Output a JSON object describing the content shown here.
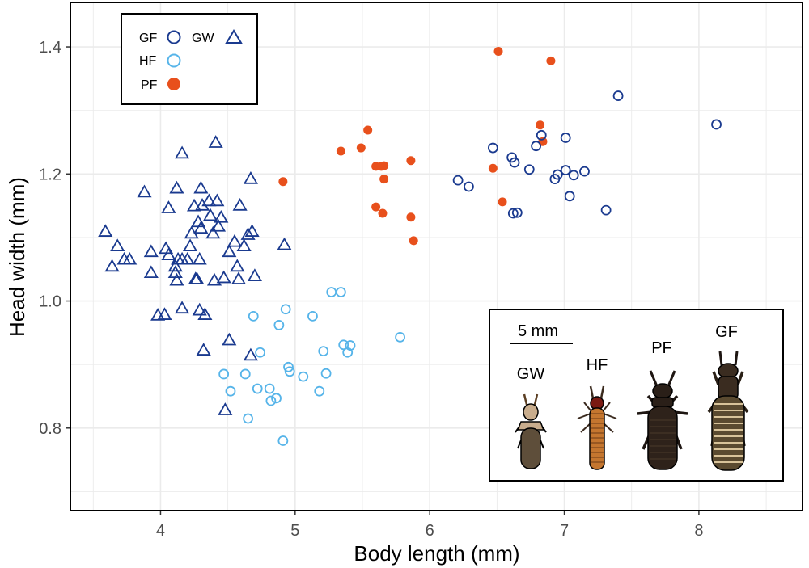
{
  "chart_data": {
    "type": "scatter",
    "title": "",
    "xlabel": "Body length (mm)",
    "ylabel": "Head width (mm)",
    "xlim": [
      3.33,
      8.77
    ],
    "ylim": [
      0.67,
      1.47
    ],
    "xticks": [
      4,
      5,
      6,
      7,
      8
    ],
    "xtick_labels": [
      "4",
      "5",
      "6",
      "7",
      "8"
    ],
    "yticks": [
      0.8,
      1.0,
      1.2,
      1.4
    ],
    "ytick_labels": [
      "0.8",
      "1.0",
      "1.2",
      "1.4"
    ],
    "grid": true,
    "legend_position": "top-left",
    "legend": [
      {
        "name": "GF",
        "shape": "open-circle",
        "color": "#1a3a8f"
      },
      {
        "name": "GW",
        "shape": "open-triangle",
        "color": "#1a3a8f"
      },
      {
        "name": "HF",
        "shape": "open-circle",
        "color": "#56b4e9"
      },
      {
        "name": "PF",
        "shape": "filled-circle",
        "color": "#e8501c"
      }
    ],
    "series": [
      {
        "name": "GW",
        "shape": "open-triangle",
        "color": "#1a3a8f",
        "points": [
          [
            3.59,
            1.11
          ],
          [
            3.64,
            1.055
          ],
          [
            3.68,
            1.087
          ],
          [
            3.73,
            1.066
          ],
          [
            3.77,
            1.066
          ],
          [
            3.88,
            1.172
          ],
          [
            3.93,
            1.078
          ],
          [
            3.93,
            1.045
          ],
          [
            3.98,
            0.978
          ],
          [
            4.03,
            0.979
          ],
          [
            4.04,
            1.083
          ],
          [
            4.06,
            1.073
          ],
          [
            4.06,
            1.147
          ],
          [
            4.11,
            1.055
          ],
          [
            4.11,
            1.045
          ],
          [
            4.12,
            1.178
          ],
          [
            4.12,
            1.033
          ],
          [
            4.13,
            1.066
          ],
          [
            4.16,
            1.066
          ],
          [
            4.16,
            0.989
          ],
          [
            4.16,
            1.233
          ],
          [
            4.2,
            1.066
          ],
          [
            4.22,
            1.087
          ],
          [
            4.23,
            1.107
          ],
          [
            4.25,
            1.15
          ],
          [
            4.26,
            1.035
          ],
          [
            4.27,
            1.035
          ],
          [
            4.28,
            1.125
          ],
          [
            4.29,
            1.066
          ],
          [
            4.29,
            0.986
          ],
          [
            4.3,
            1.178
          ],
          [
            4.3,
            1.115
          ],
          [
            4.31,
            1.151
          ],
          [
            4.32,
            0.923
          ],
          [
            4.33,
            0.979
          ],
          [
            4.36,
            1.158
          ],
          [
            4.37,
            1.135
          ],
          [
            4.39,
            1.107
          ],
          [
            4.4,
            1.033
          ],
          [
            4.41,
            1.25
          ],
          [
            4.42,
            1.158
          ],
          [
            4.43,
            1.118
          ],
          [
            4.45,
            1.132
          ],
          [
            4.47,
            1.037
          ],
          [
            4.48,
            0.829
          ],
          [
            4.51,
            0.939
          ],
          [
            4.51,
            1.078
          ],
          [
            4.55,
            1.094
          ],
          [
            4.57,
            1.055
          ],
          [
            4.58,
            1.035
          ],
          [
            4.59,
            1.151
          ],
          [
            4.62,
            1.087
          ],
          [
            4.65,
            1.105
          ],
          [
            4.67,
            0.915
          ],
          [
            4.67,
            1.193
          ],
          [
            4.68,
            1.11
          ],
          [
            4.7,
            1.04
          ],
          [
            4.92,
            1.089
          ]
        ]
      },
      {
        "name": "HF",
        "shape": "open-circle",
        "color": "#56b4e9",
        "points": [
          [
            4.47,
            0.885
          ],
          [
            4.52,
            0.858
          ],
          [
            4.63,
            0.885
          ],
          [
            4.65,
            0.815
          ],
          [
            4.69,
            0.976
          ],
          [
            4.72,
            0.862
          ],
          [
            4.74,
            0.919
          ],
          [
            4.81,
            0.862
          ],
          [
            4.82,
            0.843
          ],
          [
            4.86,
            0.847
          ],
          [
            4.88,
            0.962
          ],
          [
            4.91,
            0.78
          ],
          [
            4.93,
            0.987
          ],
          [
            4.95,
            0.896
          ],
          [
            4.96,
            0.889
          ],
          [
            5.06,
            0.881
          ],
          [
            5.13,
            0.976
          ],
          [
            5.18,
            0.858
          ],
          [
            5.21,
            0.921
          ],
          [
            5.23,
            0.886
          ],
          [
            5.27,
            1.014
          ],
          [
            5.34,
            1.014
          ],
          [
            5.36,
            0.931
          ],
          [
            5.39,
            0.919
          ],
          [
            5.41,
            0.93
          ],
          [
            5.78,
            0.943
          ]
        ]
      },
      {
        "name": "PF",
        "shape": "filled-circle",
        "color": "#e8501c",
        "points": [
          [
            4.91,
            1.188
          ],
          [
            5.34,
            1.236
          ],
          [
            5.49,
            1.241
          ],
          [
            5.54,
            1.269
          ],
          [
            5.6,
            1.212
          ],
          [
            5.6,
            1.148
          ],
          [
            5.64,
            1.212
          ],
          [
            5.65,
            1.138
          ],
          [
            5.66,
            1.213
          ],
          [
            5.66,
            1.192
          ],
          [
            5.86,
            1.221
          ],
          [
            5.86,
            1.132
          ],
          [
            5.88,
            1.095
          ],
          [
            6.47,
            1.209
          ],
          [
            6.51,
            1.393
          ],
          [
            6.54,
            1.156
          ],
          [
            6.82,
            1.277
          ],
          [
            6.84,
            1.251
          ],
          [
            6.9,
            1.378
          ]
        ]
      },
      {
        "name": "GF",
        "shape": "open-circle",
        "color": "#1a3a8f",
        "points": [
          [
            6.21,
            1.19
          ],
          [
            6.29,
            1.18
          ],
          [
            6.47,
            1.241
          ],
          [
            6.61,
            1.226
          ],
          [
            6.62,
            1.138
          ],
          [
            6.63,
            1.218
          ],
          [
            6.65,
            1.139
          ],
          [
            6.74,
            1.207
          ],
          [
            6.79,
            1.244
          ],
          [
            6.83,
            1.261
          ],
          [
            6.93,
            1.192
          ],
          [
            6.95,
            1.199
          ],
          [
            7.01,
            1.257
          ],
          [
            7.01,
            1.206
          ],
          [
            7.04,
            1.165
          ],
          [
            7.07,
            1.198
          ],
          [
            7.15,
            1.204
          ],
          [
            7.31,
            1.143
          ],
          [
            7.4,
            1.323
          ],
          [
            8.13,
            1.278
          ]
        ]
      }
    ],
    "inset": {
      "scale_bar_label": "5 mm",
      "scale_bar_length_mm": 5,
      "specimens": [
        {
          "label": "GW",
          "body_color": "#5e4e3a",
          "head_color": "#c9ad8d"
        },
        {
          "label": "HF",
          "body_color": "#c4762f",
          "head_color": "#7a1a12"
        },
        {
          "label": "PF",
          "body_color": "#2e221a",
          "head_color": "#2a1f18"
        },
        {
          "label": "GF",
          "body_color": "#5a4a30",
          "head_color": "#3a2c20"
        }
      ]
    }
  }
}
